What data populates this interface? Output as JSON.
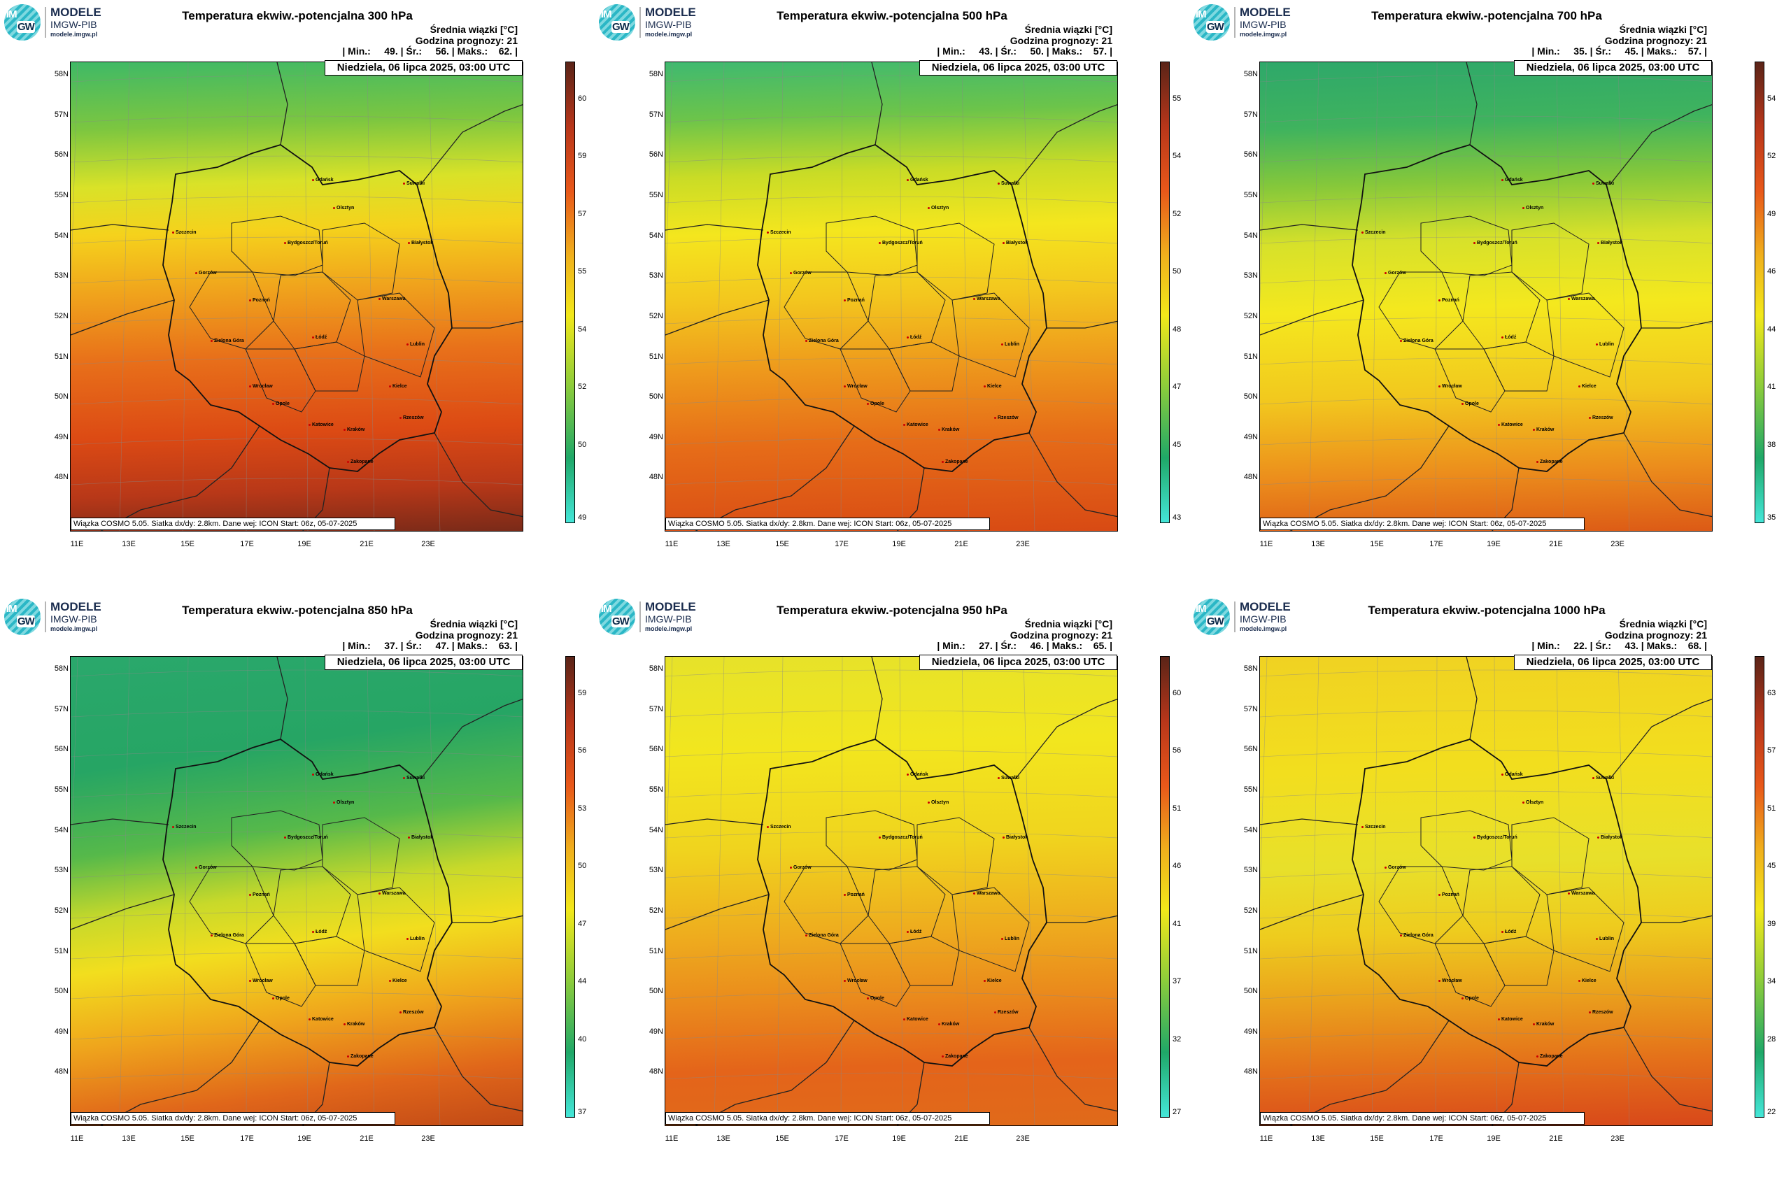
{
  "logo": {
    "line1": "MODELE",
    "line2": "IMGW-PIB",
    "line3": "modele.imgw.pl",
    "badge_top": "IM",
    "badge_bottom": "GW"
  },
  "common": {
    "subtitle": "Średnia wiązki [°C]",
    "forecast_hour": "Godzina prognozy: 21",
    "date": "Niedziela, 06 lipca 2025, 03:00 UTC",
    "footer": "Wiązka COSMO 5.05. Siatka dx/dy: 2.8km. Dane wej: ICON Start: 06z, 05-07-2025",
    "lat_labels": [
      "58N",
      "57N",
      "56N",
      "55N",
      "54N",
      "53N",
      "52N",
      "51N",
      "50N",
      "49N",
      "48N"
    ],
    "lon_labels": [
      "11E",
      "13E",
      "15E",
      "17E",
      "19E",
      "21E",
      "23E"
    ],
    "cities": [
      "Gdańsk",
      "Suwałki",
      "Olsztyn",
      "Białystok",
      "Szczecin",
      "Bydgoszcz/Toruń",
      "Gorzów",
      "Poznań",
      "Warszawa",
      "Zielona Góra",
      "Łódź",
      "Lublin",
      "Wrocław",
      "Kielce",
      "Opole",
      "Rzeszów",
      "Katowice",
      "Kraków",
      "Zakopane"
    ]
  },
  "panels": [
    {
      "title": "Temperatura ekwiw.-potencjalna 300 hPa",
      "stats": "| Min.:     49. | Śr.:     56. | Maks.:    62. |",
      "ticks": [
        "49",
        "50",
        "52",
        "54",
        "55",
        "57",
        "59",
        "60"
      ],
      "colorbar_min": 49,
      "colorbar_max": 62,
      "palette": "p300"
    },
    {
      "title": "Temperatura ekwiw.-potencjalna 500 hPa",
      "stats": "| Min.:     43. | Śr.:     50. | Maks.:    57. |",
      "ticks": [
        "43",
        "45",
        "47",
        "48",
        "50",
        "52",
        "54",
        "55"
      ],
      "colorbar_min": 43,
      "colorbar_max": 57,
      "palette": "p500"
    },
    {
      "title": "Temperatura ekwiw.-potencjalna 700 hPa",
      "stats": "| Min.:     35. | Śr.:     45. | Maks.:    57. |",
      "ticks": [
        "35",
        "38",
        "41",
        "44",
        "46",
        "49",
        "52",
        "54"
      ],
      "colorbar_min": 35,
      "colorbar_max": 57,
      "palette": "p700"
    },
    {
      "title": "Temperatura ekwiw.-potencjalna 850 hPa",
      "stats": "| Min.:     37. | Śr.:     47. | Maks.:    63. |",
      "ticks": [
        "37",
        "40",
        "44",
        "47",
        "50",
        "53",
        "56",
        "59"
      ],
      "colorbar_min": 37,
      "colorbar_max": 63,
      "palette": "p850"
    },
    {
      "title": "Temperatura ekwiw.-potencjalna 950 hPa",
      "stats": "| Min.:     27. | Śr.:     46. | Maks.:    65. |",
      "ticks": [
        "27",
        "32",
        "37",
        "41",
        "46",
        "51",
        "56",
        "60"
      ],
      "colorbar_min": 27,
      "colorbar_max": 65,
      "palette": "p950"
    },
    {
      "title": "Temperatura ekwiw.-potencjalna 1000 hPa",
      "stats": "| Min.:     22. | Śr.:     43. | Maks.:    68. |",
      "ticks": [
        "22",
        "28",
        "34",
        "39",
        "45",
        "51",
        "57",
        "63"
      ],
      "colorbar_min": 22,
      "colorbar_max": 68,
      "palette": "p1000"
    }
  ],
  "colors": {
    "min": "#44e6d8",
    "low": "#1fa868",
    "mid": "#f2e81a",
    "high": "#e8581a",
    "max": "#5a2418"
  }
}
